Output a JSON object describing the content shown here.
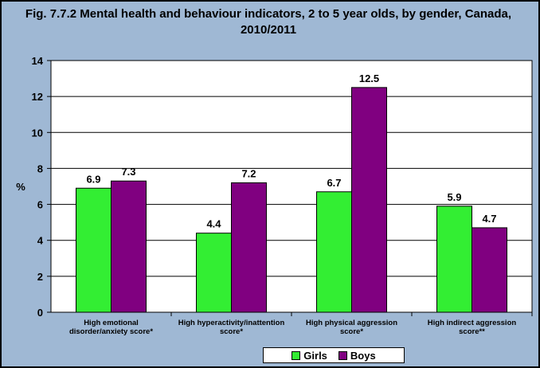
{
  "colors": {
    "girls": "#33ee33",
    "boys": "#800080",
    "plot_bg": "#ffffff",
    "frame_bg": "#9fb8d4",
    "grid": "#000000"
  },
  "chart_data": {
    "type": "bar",
    "title": "Fig. 7.7.2 Mental health and behaviour indicators, 2 to 5 year olds, by gender, Canada, 2010/2011",
    "xlabel": "",
    "ylabel": "%",
    "ylim": [
      0,
      14
    ],
    "yticks": [
      "0",
      "2",
      "4",
      "6",
      "8",
      "10",
      "12",
      "14"
    ],
    "grid": true,
    "legend_position": "bottom",
    "categories": [
      [
        "High emotional",
        "disorder/anxiety score*"
      ],
      [
        "High hyperactivity/inattention",
        "score*"
      ],
      [
        "High physical aggression",
        "score*"
      ],
      [
        "High indirect aggression",
        "score**"
      ]
    ],
    "series": [
      {
        "name": "Girls",
        "values": [
          6.9,
          4.4,
          6.7,
          5.9
        ],
        "labels": [
          "6.9",
          "4.4",
          "6.7",
          "5.9"
        ]
      },
      {
        "name": "Boys",
        "values": [
          7.3,
          7.2,
          12.5,
          4.7
        ],
        "labels": [
          "7.3",
          "7.2",
          "12.5",
          "4.7"
        ]
      }
    ]
  }
}
